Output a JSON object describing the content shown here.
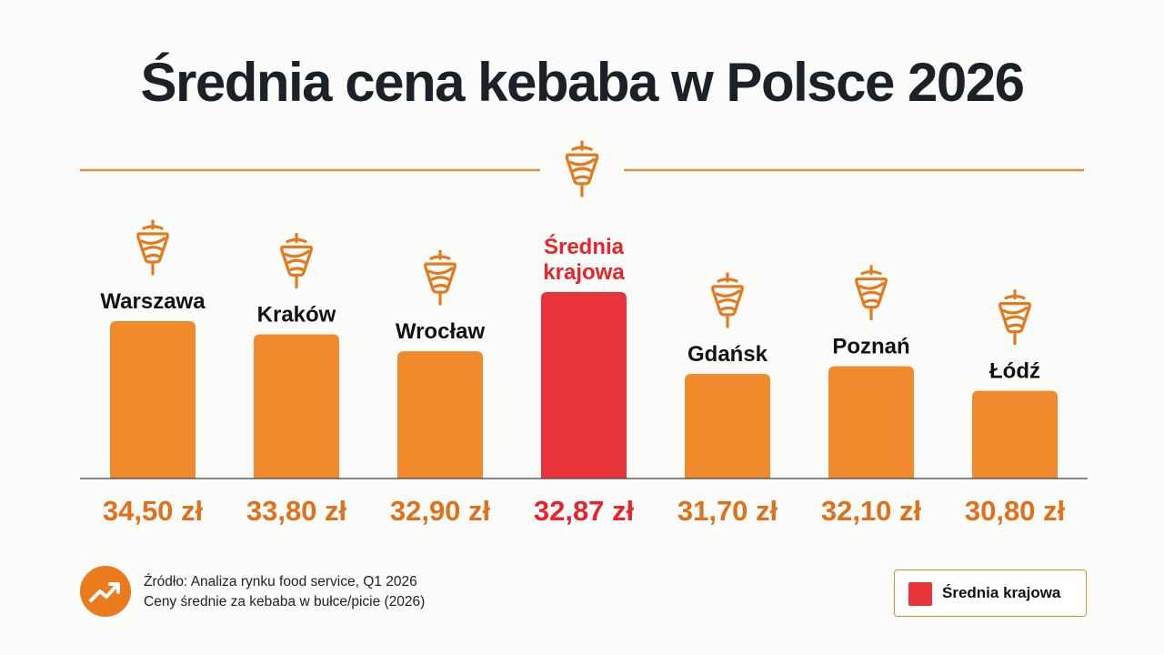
{
  "title": "Średnia cena kebaba w Polsce 2026",
  "colors": {
    "bar": "#f08a2c",
    "highlight": "#e9333a",
    "accent": "#e0701a",
    "divider": "#e98f3a"
  },
  "chart_data": {
    "type": "bar",
    "title": "Średnia cena kebaba w Polsce 2026",
    "xlabel": "",
    "ylabel": "",
    "unit": "zł",
    "categories": [
      {
        "label": [
          "Warszawa"
        ],
        "value": 34.5,
        "value_label": "34,50 zł",
        "highlight": false
      },
      {
        "label": [
          "Kraków"
        ],
        "value": 33.8,
        "value_label": "33,80 zł",
        "highlight": false
      },
      {
        "label": [
          "Wrocław"
        ],
        "value": 32.9,
        "value_label": "32,90 zł",
        "highlight": false
      },
      {
        "label": [
          "Średnia",
          "krajowa"
        ],
        "value": 32.87,
        "value_label": "32,87 zł",
        "highlight": true
      },
      {
        "label": [
          "Gdańsk"
        ],
        "value": 31.7,
        "value_label": "31,70 zł",
        "highlight": false
      },
      {
        "label": [
          "Poznań"
        ],
        "value": 32.1,
        "value_label": "32,10 zł",
        "highlight": false
      },
      {
        "label": [
          "Łódź"
        ],
        "value": 30.8,
        "value_label": "30,80 zł",
        "highlight": false
      }
    ],
    "grid": false,
    "legend": {
      "placement": "bottom-right",
      "entries": [
        "Średnia krajowa"
      ]
    }
  },
  "icons": {
    "header": "kebab-spit-icon",
    "bar": "kebab-spit-icon",
    "source": "trend-up-icon"
  },
  "source": {
    "line1": "Źródło: Analiza rynku food service, Q1 2026",
    "line2": "Ceny średnie za kebaba w bułce/picie (2026)"
  },
  "legend": {
    "label": "Średnia krajowa"
  }
}
